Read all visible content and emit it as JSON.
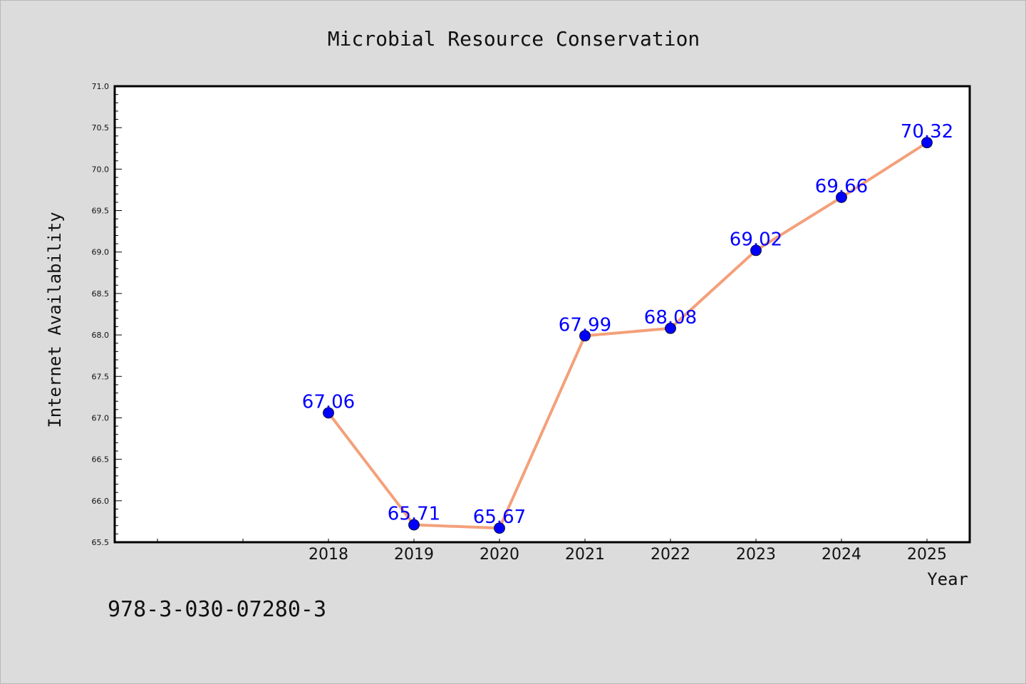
{
  "chart_data": {
    "type": "line",
    "title": "Microbial Resource Conservation",
    "xlabel": "Year",
    "ylabel": "Internet Availability",
    "categories": [
      "2018",
      "2019",
      "2020",
      "2021",
      "2022",
      "2023",
      "2024",
      "2025"
    ],
    "series": [
      {
        "values": [
          67.06,
          65.71,
          65.67,
          67.99,
          68.08,
          69.02,
          69.66,
          70.32
        ],
        "line_color": "#f4a07a",
        "marker_color": "#0000ff"
      }
    ],
    "ylim": [
      65.5,
      71.0
    ],
    "ytick_step": 0.5,
    "x_slots": 10,
    "grid": false,
    "legend": "none",
    "data_labels": true
  },
  "footnote": "978-3-030-07280-3"
}
